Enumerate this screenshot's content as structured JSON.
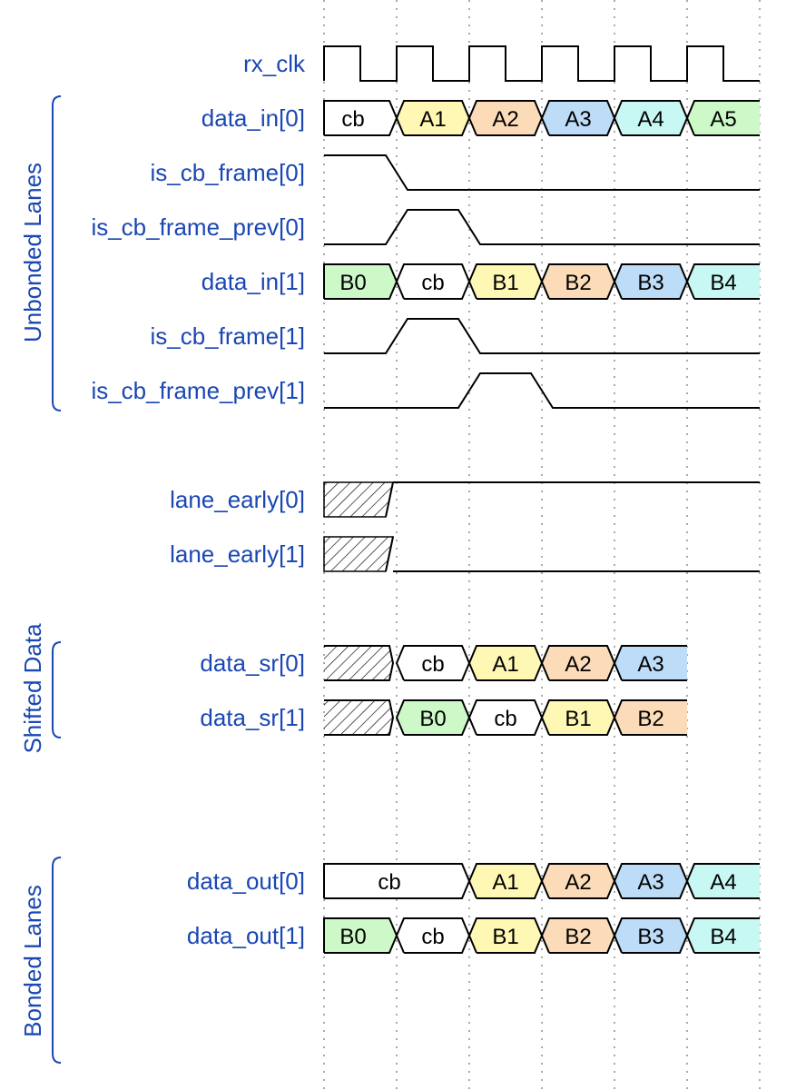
{
  "colors": {
    "label": "#1a47b3",
    "yellow": "#fff8b4",
    "peach": "#fcdcb8",
    "blue": "#bcdcf8",
    "cyan": "#c8f8f4",
    "green": "#cdf8c8",
    "white": "#ffffff"
  },
  "groups": [
    {
      "label": "Unbonded Lanes"
    },
    {
      "label": "Shifted Data"
    },
    {
      "label": "Bonded Lanes"
    }
  ],
  "signals": [
    {
      "name": "rx_clk",
      "kind": "clock",
      "periods": 6
    },
    {
      "name": "data_in[0]",
      "kind": "bus",
      "segments": [
        {
          "text": "cb",
          "span": 1,
          "color": "white"
        },
        {
          "text": "A1",
          "span": 1,
          "color": "yellow"
        },
        {
          "text": "A2",
          "span": 1,
          "color": "peach"
        },
        {
          "text": "A3",
          "span": 1,
          "color": "blue"
        },
        {
          "text": "A4",
          "span": 1,
          "color": "cyan"
        },
        {
          "text": "A5",
          "span": 1,
          "color": "green"
        }
      ]
    },
    {
      "name": "is_cb_frame[0]",
      "kind": "bit",
      "levels": [
        1,
        0,
        0,
        0,
        0,
        0
      ]
    },
    {
      "name": "is_cb_frame_prev[0]",
      "kind": "bit",
      "levels": [
        0,
        1,
        0,
        0,
        0,
        0
      ]
    },
    {
      "name": "data_in[1]",
      "kind": "bus",
      "segments": [
        {
          "text": "B0",
          "span": 1,
          "color": "green"
        },
        {
          "text": "cb",
          "span": 1,
          "color": "white"
        },
        {
          "text": "B1",
          "span": 1,
          "color": "yellow"
        },
        {
          "text": "B2",
          "span": 1,
          "color": "peach"
        },
        {
          "text": "B3",
          "span": 1,
          "color": "blue"
        },
        {
          "text": "B4",
          "span": 1,
          "color": "cyan"
        }
      ]
    },
    {
      "name": "is_cb_frame[1]",
      "kind": "bit",
      "levels": [
        0,
        1,
        0,
        0,
        0,
        0
      ]
    },
    {
      "name": "is_cb_frame_prev[1]",
      "kind": "bit",
      "levels": [
        0,
        0,
        1,
        0,
        0,
        0
      ]
    },
    {
      "name": "lane_early[0]",
      "kind": "bit",
      "levels": [
        "x",
        1,
        1,
        1,
        1,
        1
      ]
    },
    {
      "name": "lane_early[1]",
      "kind": "bit",
      "levels": [
        "x",
        0,
        0,
        0,
        0,
        0
      ]
    },
    {
      "name": "data_sr[0]",
      "kind": "bus",
      "segments": [
        {
          "text": "",
          "span": 1,
          "color": "hatch"
        },
        {
          "text": "cb",
          "span": 1,
          "color": "white"
        },
        {
          "text": "A1",
          "span": 1,
          "color": "yellow"
        },
        {
          "text": "A2",
          "span": 1,
          "color": "peach"
        },
        {
          "text": "A3",
          "span": 1,
          "color": "blue"
        }
      ]
    },
    {
      "name": "data_sr[1]",
      "kind": "bus",
      "segments": [
        {
          "text": "",
          "span": 1,
          "color": "hatch"
        },
        {
          "text": "B0",
          "span": 1,
          "color": "green"
        },
        {
          "text": "cb",
          "span": 1,
          "color": "white"
        },
        {
          "text": "B1",
          "span": 1,
          "color": "yellow"
        },
        {
          "text": "B2",
          "span": 1,
          "color": "peach"
        }
      ]
    },
    {
      "name": "data_out[0]",
      "kind": "bus",
      "segments": [
        {
          "text": "cb",
          "span": 2,
          "color": "white"
        },
        {
          "text": "A1",
          "span": 1,
          "color": "yellow"
        },
        {
          "text": "A2",
          "span": 1,
          "color": "peach"
        },
        {
          "text": "A3",
          "span": 1,
          "color": "blue"
        },
        {
          "text": "A4",
          "span": 1,
          "color": "cyan"
        }
      ]
    },
    {
      "name": "data_out[1]",
      "kind": "bus",
      "segments": [
        {
          "text": "B0",
          "span": 1,
          "color": "green"
        },
        {
          "text": "cb",
          "span": 1,
          "color": "white"
        },
        {
          "text": "B1",
          "span": 1,
          "color": "yellow"
        },
        {
          "text": "B2",
          "span": 1,
          "color": "peach"
        },
        {
          "text": "B3",
          "span": 1,
          "color": "blue"
        },
        {
          "text": "B4",
          "span": 1,
          "color": "cyan"
        }
      ]
    }
  ]
}
